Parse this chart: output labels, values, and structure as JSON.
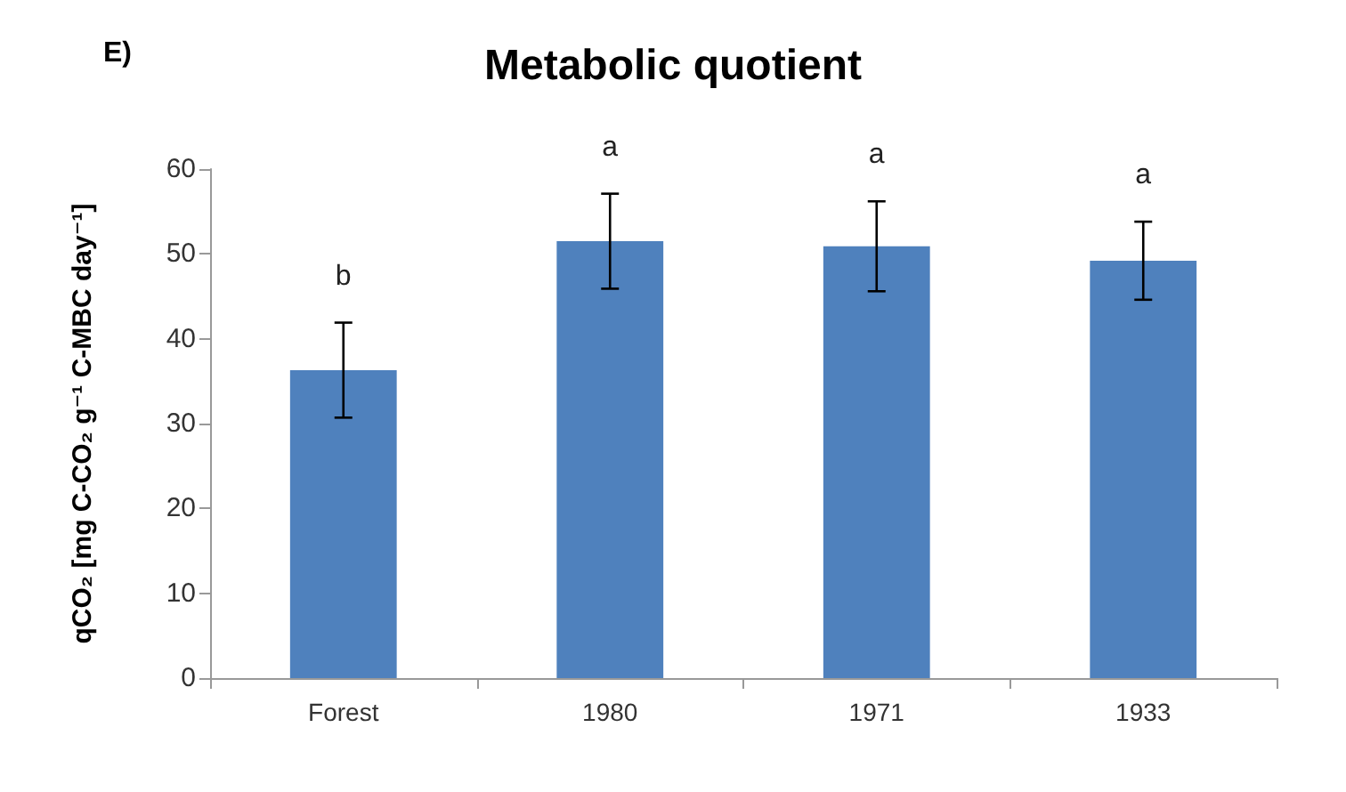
{
  "chart_data": {
    "type": "bar",
    "title": "Metabolic quotient",
    "ylabel": "qCO₂ [mg C-CO₂ g⁻¹ C-MBC day⁻¹]",
    "categories": [
      "Forest",
      "1980",
      "1971",
      "1933"
    ],
    "values": [
      36.3,
      51.5,
      50.9,
      49.2
    ],
    "errors": [
      5.6,
      5.6,
      5.3,
      4.6
    ],
    "color": "#4f81bd",
    "ylim": [
      0,
      60
    ],
    "yticks": [
      0,
      10,
      20,
      30,
      40,
      50,
      60
    ],
    "grid": false,
    "annotations": [
      "E)",
      {
        "text": "b",
        "x": "Forest",
        "y": 41.9
      },
      {
        "text": "a",
        "x": "1980",
        "y": 57.1
      },
      {
        "text": "a",
        "x": "1971",
        "y": 56.2
      },
      {
        "text": "a",
        "x": "1933",
        "y": 53.8
      }
    ]
  }
}
